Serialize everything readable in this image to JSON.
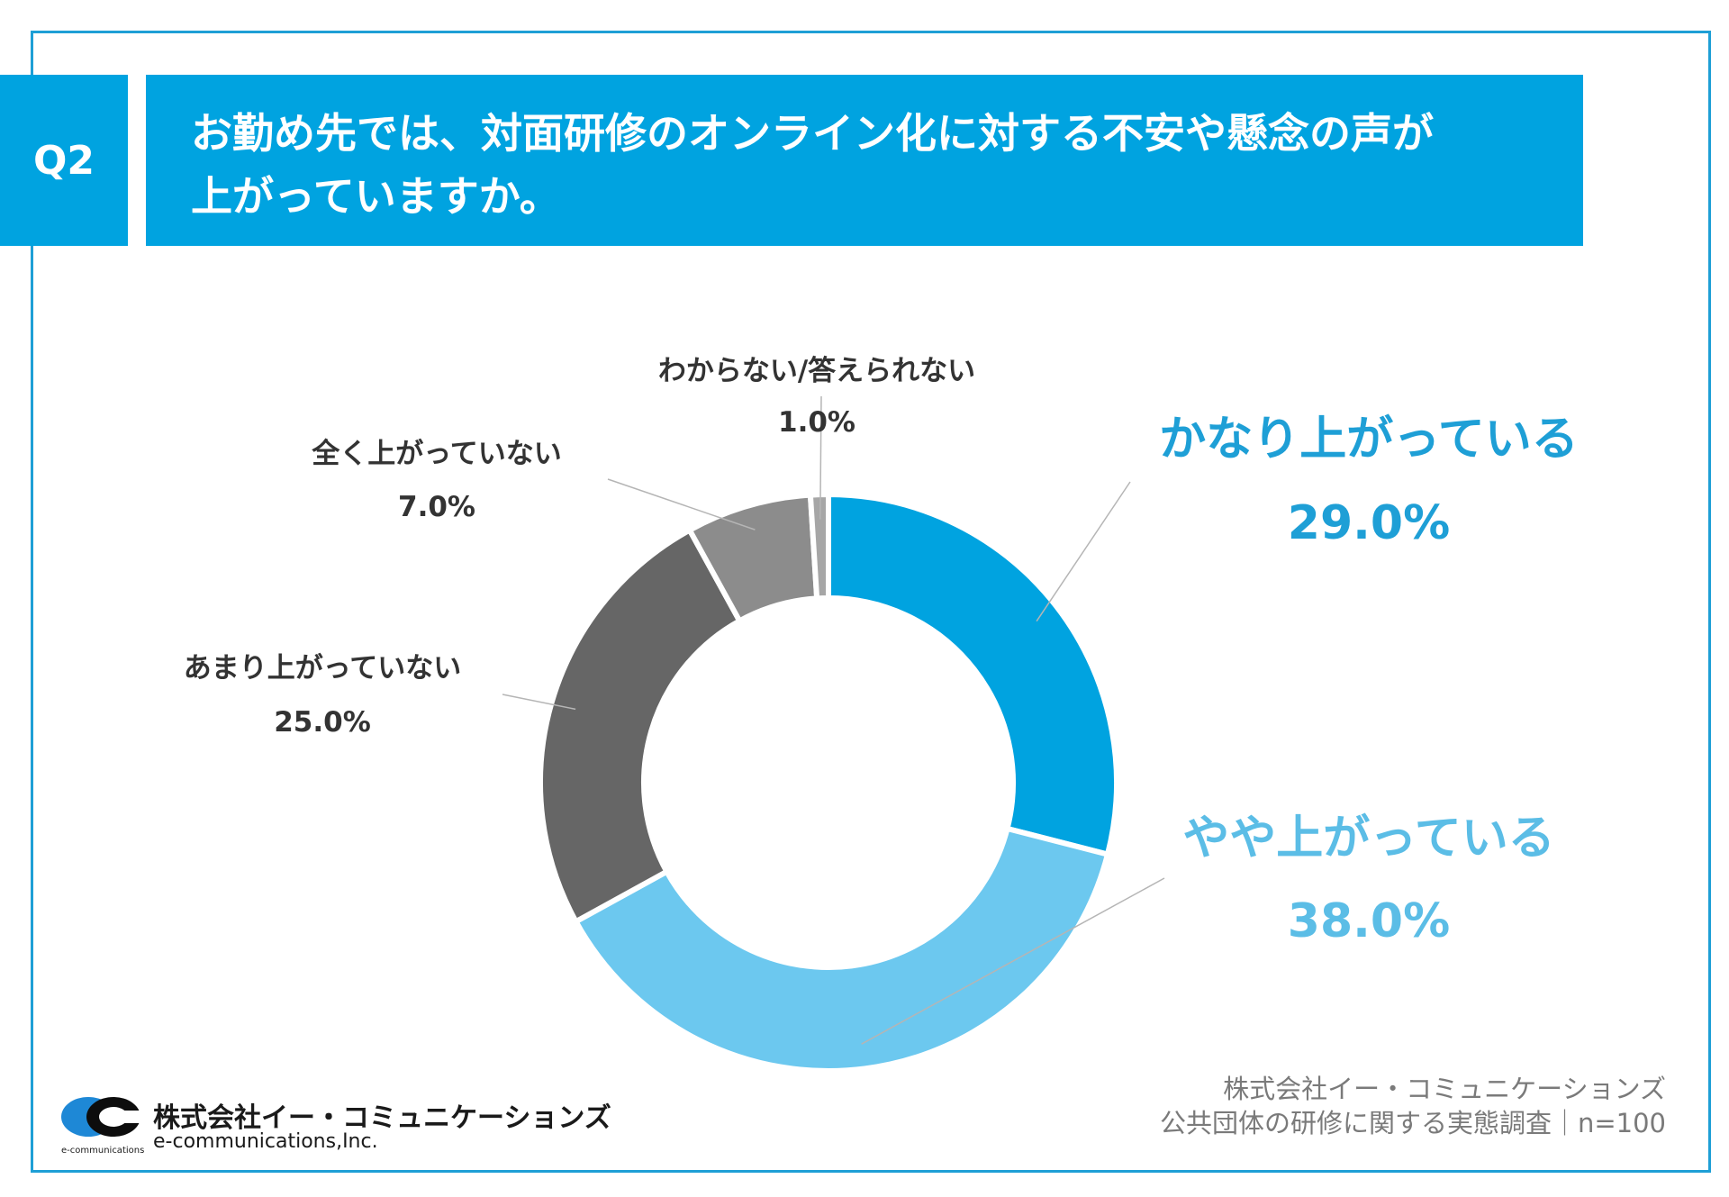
{
  "question": {
    "badge": "Q2",
    "title_line1": "お勤め先では、対面研修のオンライン化に対する不安や懸念の声が",
    "title_line2": "上がっていますか。"
  },
  "chart_data": {
    "type": "pie",
    "title": "お勤め先では、対面研修のオンライン化に対する不安や懸念の声が上がっていますか。",
    "unit": "%",
    "slices": [
      {
        "label": "かなり上がっている",
        "value": 29.0,
        "value_label": "29.0%",
        "color": "#00a3e0"
      },
      {
        "label": "やや上がっている",
        "value": 38.0,
        "value_label": "38.0%",
        "color": "#6cc8ef"
      },
      {
        "label": "あまり上がっていない",
        "value": 25.0,
        "value_label": "25.0%",
        "color": "#666666"
      },
      {
        "label": "全く上がっていない",
        "value": 7.0,
        "value_label": "7.0%",
        "color": "#8c8c8c"
      },
      {
        "label": "わからない/答えられない",
        "value": 1.0,
        "value_label": "1.0%",
        "color": "#a6a6a6"
      }
    ],
    "label_colors": {
      "primary": "#1e9fd6",
      "secondary": "#5bbde6",
      "neutral": "#333333"
    }
  },
  "footer": {
    "source_line1": "株式会社イー・コミュニケーションズ",
    "source_line2": "公共団体の研修に関する実態調査｜n=100",
    "company_name": "株式会社イー・コミュニケーションズ",
    "company_en": "e-communications,Inc.",
    "logo_small_text": "e-communications"
  }
}
